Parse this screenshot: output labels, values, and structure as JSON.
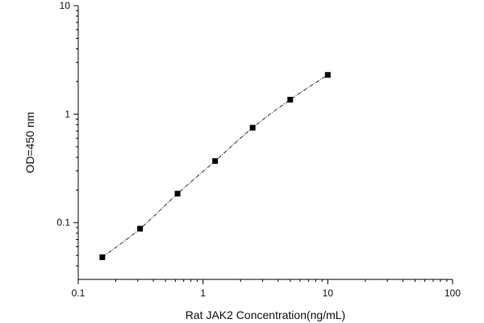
{
  "chart_data": {
    "type": "scatter",
    "title": "",
    "xlabel": "Rat JAK2 Concentration(ng/mL)",
    "ylabel": "OD=450 nm",
    "xscale": "log",
    "yscale": "log",
    "xlim": [
      0.1,
      100
    ],
    "ylim": [
      0.03,
      10
    ],
    "x_ticks": [
      {
        "value": 0.1,
        "label": "0.1"
      },
      {
        "value": 1,
        "label": "1"
      },
      {
        "value": 10,
        "label": "10"
      },
      {
        "value": 100,
        "label": "100"
      }
    ],
    "y_ticks": [
      {
        "value": 0.1,
        "label": "0.1"
      },
      {
        "value": 1,
        "label": "1"
      },
      {
        "value": 10,
        "label": "10"
      }
    ],
    "grid": false,
    "legend": "none",
    "marker_color": "#000000",
    "series": [
      {
        "x": [
          0.156,
          0.313,
          0.625,
          1.25,
          2.5,
          5,
          10
        ],
        "y": [
          0.048,
          0.088,
          0.185,
          0.37,
          0.75,
          1.36,
          2.3
        ]
      }
    ]
  }
}
